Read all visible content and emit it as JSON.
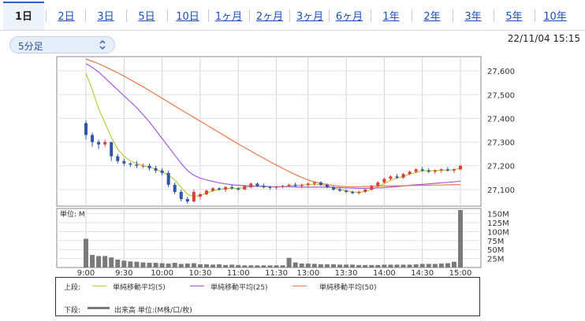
{
  "tabs": [
    {
      "label": "1日",
      "active": true
    },
    {
      "label": "2日"
    },
    {
      "label": "3日"
    },
    {
      "label": "5日"
    },
    {
      "label": "10日"
    },
    {
      "label": "1ヶ月"
    },
    {
      "label": "2ヶ月"
    },
    {
      "label": "3ヶ月"
    },
    {
      "label": "6ヶ月"
    },
    {
      "label": "1年"
    },
    {
      "label": "2年"
    },
    {
      "label": "3年"
    },
    {
      "label": "5年"
    },
    {
      "label": "10年"
    }
  ],
  "period_select": {
    "value": "5分足",
    "icon": "chevron-updown-icon"
  },
  "timestamp": "22/11/04 15:15",
  "legend": {
    "upper_label": "上段:",
    "lower_label": "下段:",
    "ma5": "単純移動平均(5)",
    "ma25": "単純移動平均(25)",
    "ma50": "単純移動平均(50)",
    "volume": "出来高 単位:(M株/口/枚)"
  },
  "colors": {
    "ma5": "#b8cc3c",
    "ma25": "#a35be0",
    "ma50": "#e8794a",
    "up": "#d9413a",
    "down": "#2f54a8",
    "volume": "#7a7a7a",
    "accent": "#2a64c9"
  },
  "chart_data": [
    {
      "type": "candlestick",
      "yticks": [
        "27,600",
        "27,500",
        "27,400",
        "27,300",
        "27,200",
        "27,100"
      ],
      "ylim": [
        27030,
        27660
      ],
      "xticks": [
        "9:00",
        "9:30",
        "10:00",
        "10:30",
        "11:00",
        "11:30",
        "13:00",
        "13:30",
        "14:00",
        "14:30",
        "15:00"
      ],
      "series": [
        {
          "kind": "candles",
          "ohlc": [
            [
              27380,
              27390,
              27310,
              27330
            ],
            [
              27330,
              27340,
              27280,
              27300
            ],
            [
              27300,
              27310,
              27270,
              27290
            ],
            [
              27290,
              27310,
              27280,
              27300
            ],
            [
              27300,
              27300,
              27220,
              27240
            ],
            [
              27240,
              27250,
              27210,
              27220
            ],
            [
              27220,
              27230,
              27200,
              27210
            ],
            [
              27210,
              27215,
              27195,
              27205
            ],
            [
              27205,
              27220,
              27190,
              27200
            ],
            [
              27200,
              27210,
              27190,
              27200
            ],
            [
              27200,
              27210,
              27180,
              27190
            ],
            [
              27190,
              27200,
              27170,
              27180
            ],
            [
              27180,
              27190,
              27160,
              27170
            ],
            [
              27170,
              27180,
              27110,
              27120
            ],
            [
              27120,
              27130,
              27080,
              27090
            ],
            [
              27090,
              27100,
              27050,
              27060
            ],
            [
              27060,
              27070,
              27040,
              27050
            ],
            [
              27050,
              27100,
              27045,
              27090
            ],
            [
              27070,
              27085,
              27060,
              27080
            ],
            [
              27080,
              27100,
              27075,
              27095
            ],
            [
              27095,
              27110,
              27090,
              27105
            ],
            [
              27105,
              27110,
              27095,
              27100
            ],
            [
              27100,
              27115,
              27090,
              27110
            ],
            [
              27110,
              27120,
              27100,
              27105
            ],
            [
              27105,
              27110,
              27095,
              27100
            ],
            [
              27100,
              27120,
              27098,
              27115
            ],
            [
              27110,
              27130,
              27105,
              27125
            ],
            [
              27125,
              27130,
              27110,
              27115
            ],
            [
              27115,
              27125,
              27105,
              27110
            ],
            [
              27110,
              27115,
              27100,
              27108
            ],
            [
              27108,
              27115,
              27100,
              27112
            ],
            [
              27112,
              27120,
              27105,
              27115
            ],
            [
              27115,
              27125,
              27110,
              27120
            ],
            [
              27120,
              27130,
              27110,
              27115
            ],
            [
              27115,
              27125,
              27105,
              27120
            ],
            [
              27120,
              27130,
              27110,
              27125
            ],
            [
              27125,
              27135,
              27115,
              27130
            ],
            [
              27130,
              27135,
              27115,
              27120
            ],
            [
              27120,
              27125,
              27105,
              27110
            ],
            [
              27110,
              27115,
              27095,
              27100
            ],
            [
              27100,
              27110,
              27090,
              27095
            ],
            [
              27095,
              27100,
              27085,
              27090
            ],
            [
              27090,
              27095,
              27080,
              27085
            ],
            [
              27085,
              27095,
              27080,
              27090
            ],
            [
              27090,
              27105,
              27085,
              27100
            ],
            [
              27100,
              27120,
              27095,
              27115
            ],
            [
              27115,
              27135,
              27110,
              27130
            ],
            [
              27130,
              27150,
              27125,
              27145
            ],
            [
              27145,
              27160,
              27140,
              27155
            ],
            [
              27155,
              27165,
              27145,
              27150
            ],
            [
              27150,
              27170,
              27145,
              27165
            ],
            [
              27165,
              27180,
              27160,
              27175
            ],
            [
              27175,
              27190,
              27170,
              27185
            ],
            [
              27185,
              27195,
              27175,
              27180
            ],
            [
              27180,
              27190,
              27170,
              27175
            ],
            [
              27175,
              27185,
              27165,
              27180
            ],
            [
              27180,
              27190,
              27170,
              27185
            ],
            [
              27185,
              27195,
              27175,
              27180
            ],
            [
              27180,
              27190,
              27170,
              27185
            ],
            [
              27185,
              27205,
              27180,
              27200
            ]
          ]
        },
        {
          "name": "単純移動平均(5)",
          "kind": "line",
          "color_key": "ma5",
          "values": [
            27590,
            27520,
            27440,
            27380,
            27320,
            27270,
            27240,
            27220,
            27210,
            27200,
            27195,
            27185,
            27175,
            27160,
            27140,
            27110,
            27080,
            27070,
            27075,
            27085,
            27095,
            27100,
            27105,
            27105,
            27105,
            27108,
            27112,
            27115,
            27115,
            27112,
            27110,
            27112,
            27115,
            27118,
            27118,
            27120,
            27122,
            27120,
            27115,
            27108,
            27100,
            27095,
            27090,
            27088,
            27092,
            27100,
            27112,
            27125,
            27138,
            27148,
            27155,
            27165,
            27172,
            27178,
            27180,
            27180,
            27182,
            27182,
            27183,
            27190
          ]
        },
        {
          "name": "単純移動平均(25)",
          "kind": "line",
          "color_key": "ma25",
          "values": [
            27630,
            27615,
            27595,
            27570,
            27545,
            27520,
            27495,
            27470,
            27445,
            27415,
            27385,
            27350,
            27315,
            27280,
            27245,
            27210,
            27180,
            27160,
            27148,
            27140,
            27134,
            27128,
            27124,
            27120,
            27118,
            27116,
            27115,
            27114,
            27113,
            27112,
            27112,
            27112,
            27112,
            27111,
            27110,
            27110,
            27110,
            27110,
            27110,
            27109,
            27108,
            27107,
            27106,
            27105,
            27105,
            27106,
            27107,
            27108,
            27110,
            27112,
            27115,
            27118,
            27120,
            27122,
            27124,
            27126,
            27128,
            27130,
            27132,
            27135
          ]
        },
        {
          "name": "単純移動平均(50)",
          "kind": "line",
          "color_key": "ma50",
          "values": [
            27650,
            27640,
            27630,
            27618,
            27605,
            27592,
            27578,
            27563,
            27548,
            27533,
            27517,
            27501,
            27485,
            27468,
            27452,
            27436,
            27420,
            27404,
            27388,
            27372,
            27356,
            27340,
            27324,
            27308,
            27292,
            27277,
            27262,
            27247,
            27232,
            27217,
            27203,
            27189,
            27176,
            27163,
            27151,
            27140,
            27132,
            27126,
            27121,
            27117,
            27114,
            27112,
            27112,
            27112,
            27113,
            27114,
            27115,
            27115,
            27115,
            27116,
            27116,
            27117,
            27117,
            27118,
            27118,
            27119,
            27119,
            27120,
            27120,
            27121
          ]
        }
      ]
    },
    {
      "type": "bar",
      "title": "単位: M",
      "yticks": [
        "150M",
        "125M",
        "100M",
        "75M",
        "50M",
        "25M"
      ],
      "ylim": [
        0,
        160
      ],
      "values": [
        80,
        35,
        32,
        32,
        28,
        22,
        19,
        17,
        16,
        14,
        13,
        13,
        12,
        11,
        13,
        10,
        11,
        12,
        9,
        9,
        8,
        9,
        7,
        8,
        7,
        6,
        6,
        6,
        6,
        6,
        6,
        6,
        27,
        14,
        11,
        11,
        10,
        9,
        9,
        9,
        8,
        8,
        8,
        7,
        7,
        7,
        7,
        8,
        8,
        8,
        8,
        8,
        9,
        10,
        10,
        10,
        11,
        12,
        16,
        165
      ]
    }
  ]
}
